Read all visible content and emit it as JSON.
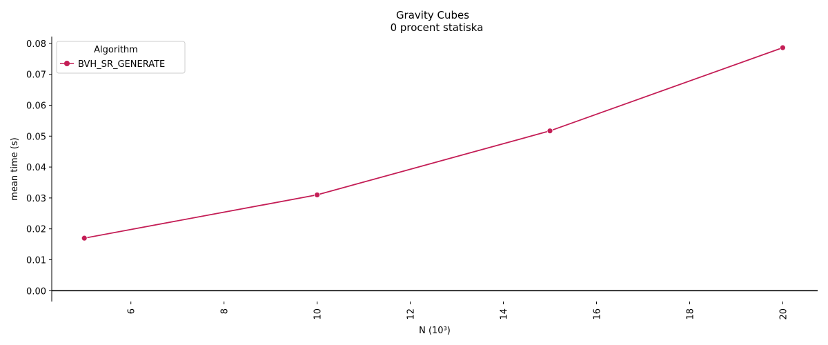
{
  "chart_data": {
    "type": "line",
    "title": "Gravity Cubes",
    "subtitle": "0 procent statiska",
    "xlabel": "N (10³)",
    "ylabel": "mean time (s)",
    "xlim": [
      4.3,
      20.75
    ],
    "ylim": [
      -0.0035,
      0.0822
    ],
    "xticks": [
      6,
      8,
      10,
      12,
      14,
      16,
      18,
      20
    ],
    "yticks": [
      "0.00",
      "0.01",
      "0.02",
      "0.03",
      "0.04",
      "0.05",
      "0.06",
      "0.07",
      "0.08"
    ],
    "grid": false,
    "legend": {
      "title": "Algorithm",
      "placement": "upper-left"
    },
    "series": [
      {
        "name": "BVH_SR_GENERATE",
        "color": "#c41e56",
        "marker": "circle",
        "x": [
          5,
          10,
          15,
          20
        ],
        "y": [
          0.017,
          0.031,
          0.0517,
          0.0786
        ]
      }
    ],
    "reference_line": {
      "y": 0,
      "color": "#000000"
    }
  }
}
